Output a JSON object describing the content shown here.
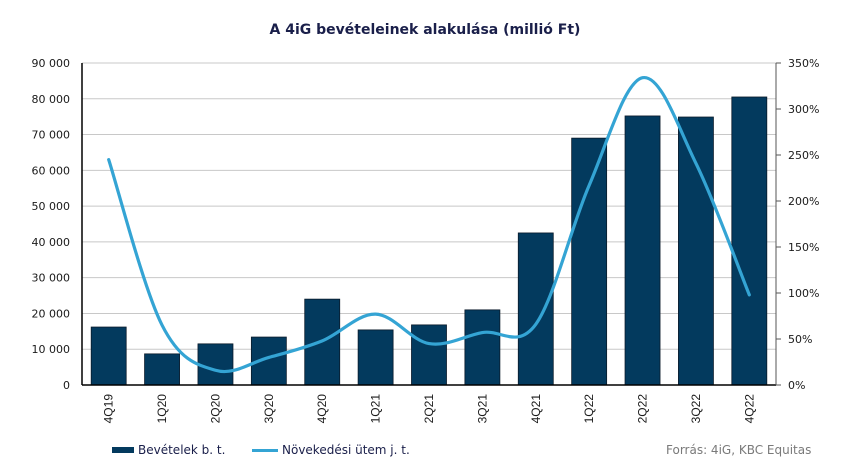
{
  "chart_data": {
    "type": "bar",
    "title": "A 4iG bevételeinek  alakulása (millió Ft)",
    "categories": [
      "4Q19",
      "1Q20",
      "2Q20",
      "3Q20",
      "4Q20",
      "1Q21",
      "2Q21",
      "3Q21",
      "4Q21",
      "1Q22",
      "2Q22",
      "3Q22",
      "4Q22"
    ],
    "series": [
      {
        "name": "Bevételek b. t.",
        "type": "bar",
        "axis": "left",
        "color": "#033a5e",
        "values": [
          16200,
          8700,
          11500,
          13400,
          24000,
          15400,
          16800,
          21000,
          42500,
          69000,
          75200,
          74900,
          80500
        ]
      },
      {
        "name": "Növekedési ütem j. t.",
        "type": "line",
        "axis": "right",
        "smooth": true,
        "color": "#34a4d4",
        "values": [
          245,
          65,
          16,
          30,
          48,
          77,
          45,
          57,
          66,
          217,
          334,
          241,
          98
        ]
      }
    ],
    "left_axis": {
      "ylim": [
        0,
        90000
      ],
      "ticks": [
        0,
        10000,
        20000,
        30000,
        40000,
        50000,
        60000,
        70000,
        80000,
        90000
      ],
      "tick_labels": [
        "0",
        "10 000",
        "20 000",
        "30 000",
        "40 000",
        "50 000",
        "60 000",
        "70 000",
        "80 000",
        "90 000"
      ]
    },
    "right_axis": {
      "ylim": [
        0,
        350
      ],
      "ticks": [
        0,
        50,
        100,
        150,
        200,
        250,
        300,
        350
      ],
      "tick_labels": [
        "0%",
        "50%",
        "100%",
        "150%",
        "200%",
        "250%",
        "300%",
        "350%"
      ]
    },
    "grid": true,
    "legend_position": "bottom-left",
    "source": "Forrás: 4iG, KBC Equitas"
  }
}
